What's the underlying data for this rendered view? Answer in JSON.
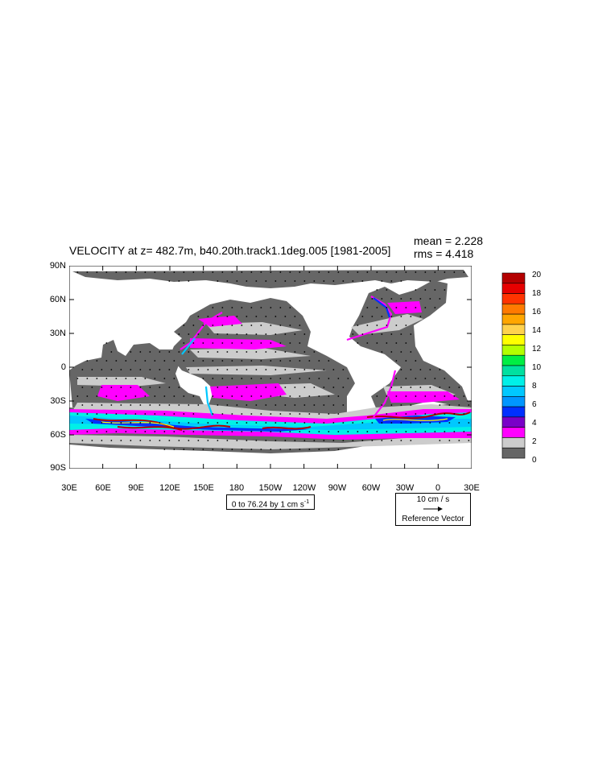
{
  "title": "VELOCITY at z= 482.7m, b40.20th.track1.1deg.005 [1981-2005]",
  "stats": {
    "mean": "mean = 2.228",
    "rms": "rms = 4.418"
  },
  "y_ticks": [
    "90N",
    "60N",
    "30N",
    "0",
    "30S",
    "60S",
    "90S"
  ],
  "x_ticks": [
    "30E",
    "60E",
    "90E",
    "120E",
    "150E",
    "180",
    "150W",
    "120W",
    "90W",
    "60W",
    "30W",
    "0",
    "30E"
  ],
  "contour_info": {
    "text": "0 to 76.24 by 1 cm s",
    "unit_exponent": "-1"
  },
  "reference_vector": {
    "speed": "10 cm / s",
    "label": "Reference Vector"
  },
  "colorbar": {
    "labels": [
      "20",
      "18",
      "16",
      "14",
      "12",
      "10",
      "8",
      "6",
      "4",
      "2",
      "0"
    ],
    "colors_top_to_bottom": [
      "#b40000",
      "#e60000",
      "#ff3300",
      "#ff7a00",
      "#ffa600",
      "#ffd24d",
      "#ffff00",
      "#b3ff00",
      "#00ee44",
      "#00e0a0",
      "#00f0e8",
      "#00c8ff",
      "#0096ff",
      "#0030ff",
      "#7a00c8",
      "#ff00ff",
      "#cccccc",
      "#666666"
    ]
  },
  "colors": {
    "land": "#ffffff",
    "low_speed": "#666666",
    "light_gray": "#cccccc",
    "magenta": "#ff00ff",
    "cyan": "#00f0e8",
    "blue": "#0030ff"
  }
}
